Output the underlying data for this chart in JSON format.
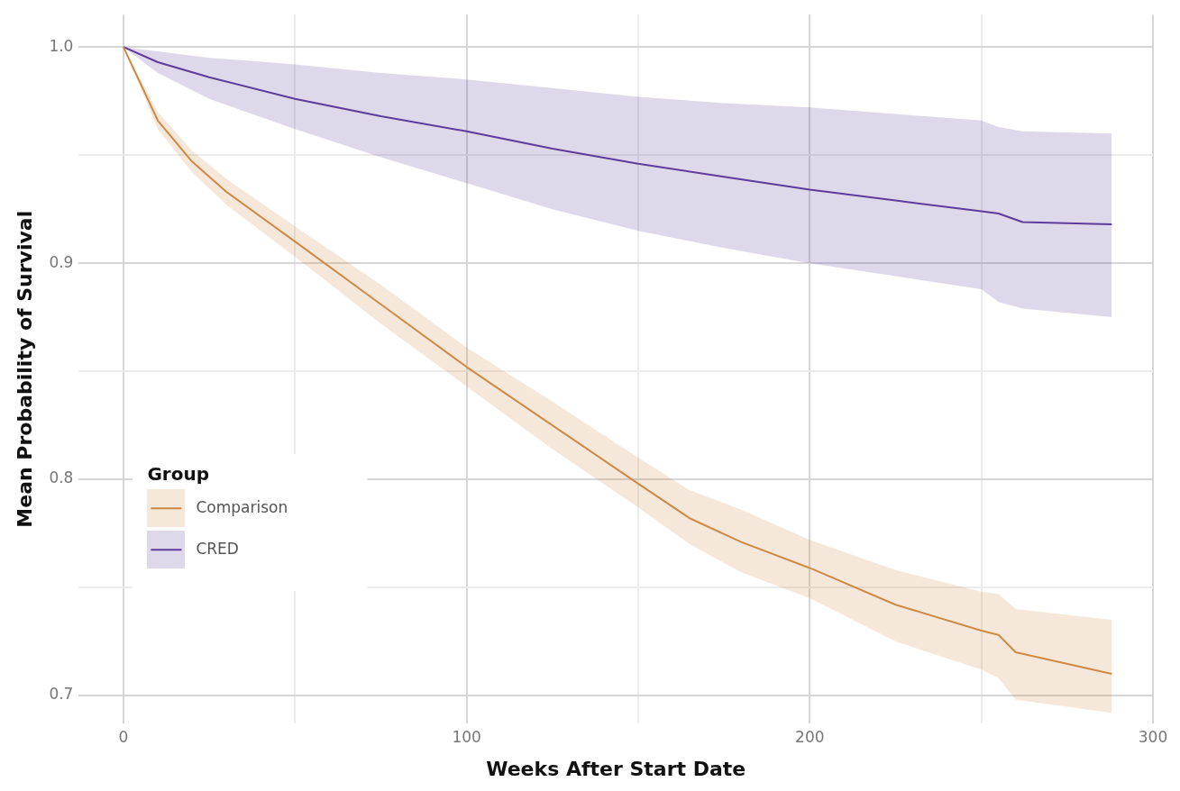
{
  "chart_data": {
    "type": "line",
    "xlabel": "Weeks After Start Date",
    "ylabel": "Mean Probability of Survival",
    "legend_title": "Group",
    "legend": "left",
    "grid": true,
    "marker": "none",
    "line_style": "solid",
    "xlim": [
      -13,
      300
    ],
    "xticks": [
      0,
      {
        "value": 50,
        "label": null
      },
      100,
      {
        "value": 150,
        "label": null
      },
      200,
      {
        "value": 250,
        "label": null
      },
      300
    ],
    "ylim": [
      0.687,
      1.015
    ],
    "yticks": [
      0.7,
      {
        "value": 0.75,
        "label": null
      },
      0.8,
      {
        "value": 0.85,
        "label": null
      },
      0.9,
      {
        "value": 0.95,
        "label": null
      },
      {
        "value": 1.0,
        "label": "1.0"
      }
    ],
    "series": [
      {
        "name": "Comparison",
        "color": "#cf8a45",
        "x": [
          0,
          10,
          20,
          30,
          50,
          75,
          100,
          125,
          150,
          165,
          180,
          200,
          225,
          250,
          255,
          260,
          288
        ],
        "values": [
          1.0,
          0.966,
          0.947,
          0.933,
          0.91,
          0.881,
          0.852,
          0.825,
          0.798,
          0.782,
          0.771,
          0.759,
          0.742,
          0.73,
          0.728,
          0.72,
          0.71
        ],
        "lower": [
          1.0,
          0.962,
          0.942,
          0.927,
          0.903,
          0.872,
          0.843,
          0.814,
          0.787,
          0.77,
          0.757,
          0.745,
          0.725,
          0.712,
          0.708,
          0.698,
          0.692
        ],
        "upper": [
          1.0,
          0.97,
          0.952,
          0.939,
          0.917,
          0.89,
          0.861,
          0.836,
          0.81,
          0.795,
          0.786,
          0.772,
          0.758,
          0.748,
          0.747,
          0.74,
          0.735
        ]
      },
      {
        "name": "CRED",
        "color": "#5e3c99",
        "x": [
          0,
          10,
          25,
          50,
          75,
          100,
          125,
          150,
          175,
          200,
          225,
          250,
          255,
          262,
          288
        ],
        "values": [
          1.0,
          0.993,
          0.986,
          0.976,
          0.968,
          0.961,
          0.953,
          0.946,
          0.94,
          0.934,
          0.929,
          0.924,
          0.923,
          0.919,
          0.918
        ],
        "lower": [
          1.0,
          0.988,
          0.976,
          0.962,
          0.949,
          0.937,
          0.925,
          0.915,
          0.907,
          0.9,
          0.894,
          0.888,
          0.882,
          0.879,
          0.875
        ],
        "upper": [
          1.0,
          0.998,
          0.995,
          0.992,
          0.988,
          0.985,
          0.981,
          0.977,
          0.974,
          0.972,
          0.969,
          0.966,
          0.963,
          0.961,
          0.96
        ]
      }
    ]
  }
}
